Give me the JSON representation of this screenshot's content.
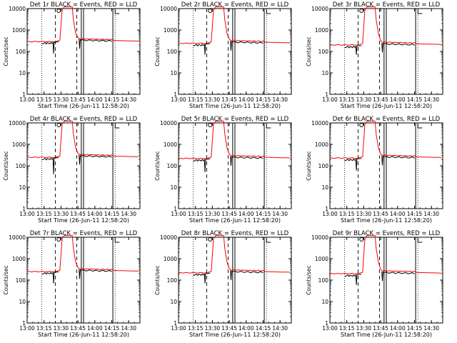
{
  "figure": {
    "xlabel": "Start Time (26-Jun-11 12:58:20)",
    "ylabel": "Counts/sec"
  },
  "chart_data": [
    {
      "type": "line",
      "title": "Det 1r BLACK = Events, RED = LLD",
      "x_ticks": [
        "13:00",
        "13:15",
        "13:30",
        "13:45",
        "14:00",
        "14:15",
        "14:30"
      ],
      "xlabel": "Start Time (26-Jun-11 12:58:20)",
      "ylabel": "Counts/sec",
      "ylog": true,
      "ylim": [
        1,
        10000
      ],
      "xlim": [
        "13:00",
        "14:40"
      ],
      "y_ticks": [
        "1",
        "10",
        "100",
        "1000",
        "10000"
      ],
      "series": [
        {
          "name": "Events",
          "color": "#000000",
          "level": 270,
          "dip_min": 80
        },
        {
          "name": "LLD",
          "color": "#ff0000",
          "level": 300,
          "peak": 10000
        }
      ]
    },
    {
      "type": "line",
      "title": "Det 2r BLACK = Events, RED = LLD",
      "x_ticks": [
        "13:00",
        "13:15",
        "13:30",
        "13:45",
        "14:00",
        "14:15",
        "14:30"
      ],
      "xlabel": "Start Time (26-Jun-11 12:58:20)",
      "ylabel": "Counts/sec",
      "ylog": true,
      "ylim": [
        1,
        10000
      ],
      "xlim": [
        "13:00",
        "14:40"
      ],
      "y_ticks": [
        "1",
        "10",
        "100",
        "1000",
        "10000"
      ],
      "series": [
        {
          "name": "Events",
          "color": "#000000",
          "level": 220,
          "dip_min": 70
        },
        {
          "name": "LLD",
          "color": "#ff0000",
          "level": 250,
          "peak": 10000
        }
      ]
    },
    {
      "type": "line",
      "title": "Det 3r BLACK = Events, RED = LLD",
      "x_ticks": [
        "13:00",
        "13:15",
        "13:30",
        "13:45",
        "14:00",
        "14:15",
        "14:30"
      ],
      "xlabel": "Start Time (26-Jun-11 12:58:20)",
      "ylabel": "Counts/sec",
      "ylog": true,
      "ylim": [
        1,
        10000
      ],
      "xlim": [
        "13:00",
        "14:40"
      ],
      "y_ticks": [
        "1",
        "10",
        "100",
        "1000",
        "10000"
      ],
      "series": [
        {
          "name": "Events",
          "color": "#000000",
          "level": 180,
          "dip_min": 70
        },
        {
          "name": "LLD",
          "color": "#ff0000",
          "level": 210,
          "peak": 10000
        }
      ]
    },
    {
      "type": "line",
      "title": "Det 4r BLACK = Events, RED = LLD",
      "x_ticks": [
        "13:00",
        "13:15",
        "13:30",
        "13:45",
        "14:00",
        "14:15",
        "14:30"
      ],
      "xlabel": "Start Time (26-Jun-11 12:58:20)",
      "ylabel": "Counts/sec",
      "ylog": true,
      "ylim": [
        1,
        10000
      ],
      "xlim": [
        "13:00",
        "14:40"
      ],
      "y_ticks": [
        "1",
        "10",
        "100",
        "1000",
        "10000"
      ],
      "series": [
        {
          "name": "Events",
          "color": "#000000",
          "level": 230,
          "dip_min": 40
        },
        {
          "name": "LLD",
          "color": "#ff0000",
          "level": 260,
          "peak": 10000
        }
      ]
    },
    {
      "type": "line",
      "title": "Det 5r BLACK = Events, RED = LLD",
      "x_ticks": [
        "13:00",
        "13:15",
        "13:30",
        "13:45",
        "14:00",
        "14:15",
        "14:30"
      ],
      "xlabel": "Start Time (26-Jun-11 12:58:20)",
      "ylabel": "Counts/sec",
      "ylog": true,
      "ylim": [
        1,
        10000
      ],
      "xlim": [
        "13:00",
        "14:40"
      ],
      "y_ticks": [
        "1",
        "10",
        "100",
        "1000",
        "10000"
      ],
      "series": [
        {
          "name": "Events",
          "color": "#000000",
          "level": 200,
          "dip_min": 50
        },
        {
          "name": "LLD",
          "color": "#ff0000",
          "level": 230,
          "peak": 10000
        }
      ]
    },
    {
      "type": "line",
      "title": "Det 6r BLACK = Events, RED = LLD",
      "x_ticks": [
        "13:00",
        "13:15",
        "13:30",
        "13:45",
        "14:00",
        "14:15",
        "14:30"
      ],
      "xlabel": "Start Time (26-Jun-11 12:58:20)",
      "ylabel": "Counts/sec",
      "ylog": true,
      "ylim": [
        1,
        10000
      ],
      "xlim": [
        "13:00",
        "14:40"
      ],
      "y_ticks": [
        "1",
        "10",
        "100",
        "1000",
        "10000"
      ],
      "series": [
        {
          "name": "Events",
          "color": "#000000",
          "level": 210,
          "dip_min": 60
        },
        {
          "name": "LLD",
          "color": "#ff0000",
          "level": 240,
          "peak": 10000
        }
      ]
    },
    {
      "type": "line",
      "title": "Det 7r BLACK = Events, RED = LLD",
      "x_ticks": [
        "13:00",
        "13:15",
        "13:30",
        "13:45",
        "14:00",
        "14:15",
        "14:30"
      ],
      "xlabel": "Start Time (26-Jun-11 12:58:20)",
      "ylabel": "Counts/sec",
      "ylog": true,
      "ylim": [
        1,
        10000
      ],
      "xlim": [
        "13:00",
        "14:40"
      ],
      "y_ticks": [
        "1",
        "10",
        "100",
        "1000",
        "10000"
      ],
      "series": [
        {
          "name": "Events",
          "color": "#000000",
          "level": 230,
          "dip_min": 70
        },
        {
          "name": "LLD",
          "color": "#ff0000",
          "level": 260,
          "peak": 10000
        }
      ]
    },
    {
      "type": "line",
      "title": "Det 8r BLACK = Events, RED = LLD",
      "x_ticks": [
        "13:00",
        "13:15",
        "13:30",
        "13:45",
        "14:00",
        "14:15",
        "14:30"
      ],
      "xlabel": "Start Time (26-Jun-11 12:58:20)",
      "ylabel": "Counts/sec",
      "ylog": true,
      "ylim": [
        1,
        10000
      ],
      "xlim": [
        "13:00",
        "14:40"
      ],
      "y_ticks": [
        "1",
        "10",
        "100",
        "1000",
        "10000"
      ],
      "series": [
        {
          "name": "Events",
          "color": "#000000",
          "level": 200,
          "dip_min": 70
        },
        {
          "name": "LLD",
          "color": "#ff0000",
          "level": 230,
          "peak": 10000
        }
      ]
    },
    {
      "type": "line",
      "title": "Det 9r BLACK = Events, RED = LLD",
      "x_ticks": [
        "13:00",
        "13:15",
        "13:30",
        "13:45",
        "14:00",
        "14:15",
        "14:30"
      ],
      "xlabel": "Start Time (26-Jun-11 12:58:20)",
      "ylabel": "Counts/sec",
      "ylog": true,
      "ylim": [
        1,
        10000
      ],
      "xlim": [
        "13:00",
        "14:40"
      ],
      "y_ticks": [
        "1",
        "10",
        "100",
        "1000",
        "10000"
      ],
      "series": [
        {
          "name": "Events",
          "color": "#000000",
          "level": 180,
          "dip_min": 60
        },
        {
          "name": "LLD",
          "color": "#ff0000",
          "level": 210,
          "peak": 10000
        }
      ]
    }
  ]
}
